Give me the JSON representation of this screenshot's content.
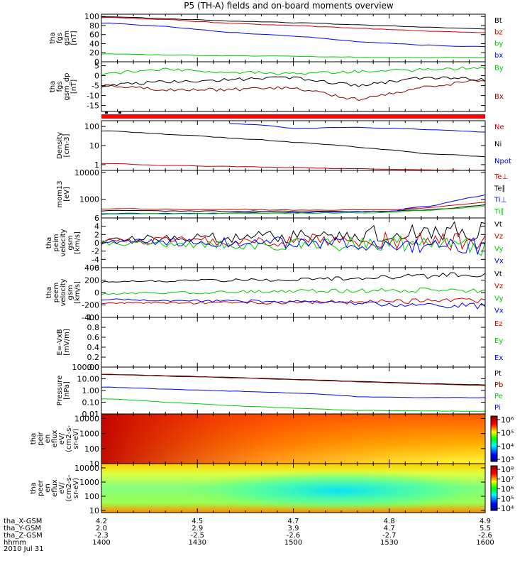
{
  "title": "P5 (TH-A) fields and on-board moments overview",
  "date_label": "2010 Jul 31",
  "ephemeris": {
    "rows": [
      {
        "label": "tha_X-GSM",
        "values": [
          "4.2",
          "4.5",
          "4.7",
          "4.8",
          "4.9"
        ]
      },
      {
        "label": "tha_Y-GSM",
        "values": [
          "2.0",
          "2.9",
          "3.9",
          "4.7",
          "5.5"
        ]
      },
      {
        "label": "tha_Z-GSM",
        "values": [
          "-2.3",
          "-2.5",
          "-2.6",
          "-2.7",
          "-2.6"
        ]
      },
      {
        "label": "hhmm",
        "values": [
          "1400",
          "1430",
          "1500",
          "1530",
          "1600"
        ]
      }
    ]
  },
  "chart_data": [
    {
      "type": "line",
      "ylabel": [
        "tha",
        "fgs",
        "gsm",
        "[nT]"
      ],
      "yscale": "linear",
      "ylim": [
        0,
        105
      ],
      "yticks": [
        "0",
        "20",
        "40",
        "60",
        "80",
        "100"
      ],
      "xlim": [
        "14:00",
        "16:00"
      ],
      "series": [
        {
          "name": "Bt",
          "color": "#000000",
          "x": [
            0,
            20,
            40,
            60,
            80,
            100,
            120
          ],
          "y": [
            100,
            95,
            90,
            86,
            82,
            77,
            72
          ]
        },
        {
          "name": "bz",
          "color": "#cc0000",
          "x": [
            0,
            20,
            40,
            60,
            80,
            100,
            120
          ],
          "y": [
            98,
            93,
            85,
            80,
            74,
            68,
            64
          ]
        },
        {
          "name": "by",
          "color": "#00cc00",
          "x": [
            0,
            20,
            40,
            60,
            80,
            100,
            120
          ],
          "y": [
            18,
            15,
            13,
            12,
            10,
            9,
            9
          ]
        },
        {
          "name": "bx",
          "color": "#0000ff",
          "x": [
            0,
            20,
            40,
            60,
            80,
            100,
            120
          ],
          "y": [
            86,
            78,
            65,
            57,
            45,
            37,
            33
          ]
        }
      ]
    },
    {
      "type": "line",
      "ylabel": [
        "tha",
        "fgs",
        "gsm_dp",
        "[nT]"
      ],
      "yscale": "linear",
      "ylim": [
        -18,
        7
      ],
      "yticks": [
        "-15",
        "-10",
        "-5",
        "0",
        "5"
      ],
      "series": [
        {
          "name": "By",
          "color": "#00cc00",
          "x": [
            0,
            20,
            40,
            60,
            80,
            100,
            120
          ],
          "y": [
            1,
            3,
            2,
            1,
            2,
            3,
            4
          ]
        },
        {
          "name": "Bx",
          "color": "#8b0000",
          "x": [
            0,
            20,
            40,
            60,
            80,
            100,
            120
          ],
          "y": [
            -5,
            -7,
            -7,
            -6,
            -12,
            -6,
            -2
          ]
        },
        {
          "name": "",
          "color": "#000000",
          "x": [
            0,
            20,
            40,
            60,
            80,
            100,
            120
          ],
          "y": [
            -5,
            -3,
            -2,
            -1,
            -5,
            -1,
            -2
          ]
        }
      ]
    },
    {
      "type": "line",
      "ylabel": [
        "Density",
        "[cm-3]"
      ],
      "yscale": "log",
      "ylim": [
        0.5,
        200
      ],
      "yticks": [
        "1",
        "10",
        "100"
      ],
      "series": [
        {
          "name": "Ne",
          "color": "#cc0000",
          "x": [
            0,
            20,
            40,
            60,
            80,
            100,
            120
          ],
          "y": [
            1.2,
            0.9,
            0.8,
            0.7,
            0.6,
            0.55,
            0.5
          ]
        },
        {
          "name": "Ni",
          "color": "#000000",
          "x": [
            0,
            20,
            40,
            60,
            80,
            100,
            120
          ],
          "y": [
            60,
            40,
            25,
            15,
            8,
            4,
            2.5
          ]
        },
        {
          "name": "Npot",
          "color": "#0000ff",
          "x": [
            40,
            60,
            80,
            100,
            120
          ],
          "y": [
            150,
            80,
            90,
            70,
            50
          ]
        }
      ]
    },
    {
      "type": "line",
      "ylabel": [
        "mom13",
        "[eV]"
      ],
      "yscale": "log",
      "ylim": [
        200,
        12000
      ],
      "yticks": [
        "1000",
        "10000"
      ],
      "series": [
        {
          "name": "Te⊥",
          "color": "#cc0000",
          "x": [
            0,
            30,
            60,
            90,
            105,
            120
          ],
          "y": [
            450,
            420,
            400,
            400,
            500,
            750
          ]
        },
        {
          "name": "Te∥",
          "color": "#000000",
          "x": [
            0,
            30,
            60,
            90,
            105,
            120
          ],
          "y": [
            380,
            360,
            350,
            350,
            420,
            600
          ]
        },
        {
          "name": "Ti⊥",
          "color": "#0000ff",
          "x": [
            0,
            30,
            60,
            90,
            105,
            120
          ],
          "y": [
            300,
            300,
            320,
            350,
            600,
            1400
          ]
        },
        {
          "name": "Ti∥",
          "color": "#00cc00",
          "x": [
            0,
            30,
            60,
            90,
            105,
            120
          ],
          "y": [
            280,
            290,
            300,
            320,
            400,
            550
          ]
        }
      ]
    },
    {
      "type": "line",
      "ylabel": [
        "tha",
        "peim",
        "velocity",
        "gsm",
        "[km/s]"
      ],
      "yscale": "linear",
      "ylim": [
        -6,
        6
      ],
      "yticks": [
        "-6",
        "-4",
        "-2",
        "0",
        "2",
        "4",
        "6"
      ],
      "series": [
        {
          "name": "Vt",
          "color": "#000000",
          "x": [
            0,
            60,
            120
          ],
          "y": [
            1,
            1.5,
            3
          ]
        },
        {
          "name": "Vz",
          "color": "#cc0000",
          "x": [
            0,
            60,
            120
          ],
          "y": [
            0.5,
            0.5,
            0.5
          ]
        },
        {
          "name": "Vy",
          "color": "#00cc00",
          "x": [
            0,
            60,
            120
          ],
          "y": [
            0,
            -0.3,
            -0.5
          ]
        },
        {
          "name": "Vx",
          "color": "#0000ff",
          "x": [
            0,
            60,
            120
          ],
          "y": [
            0.3,
            0,
            -0.5
          ]
        }
      ]
    },
    {
      "type": "line",
      "ylabel": [
        "tha",
        "peem",
        "velocity",
        "gsm",
        "[km/s]"
      ],
      "yscale": "linear",
      "ylim": [
        -400,
        400
      ],
      "yticks": [
        "-400",
        "-200",
        "0",
        "200",
        "400"
      ],
      "series": [
        {
          "name": "Vt",
          "color": "#000000",
          "x": [
            0,
            60,
            120
          ],
          "y": [
            170,
            210,
            290
          ]
        },
        {
          "name": "Vz",
          "color": "#cc0000",
          "x": [
            0,
            60,
            120
          ],
          "y": [
            -170,
            -160,
            -130
          ]
        },
        {
          "name": "Vy",
          "color": "#00cc00",
          "x": [
            0,
            60,
            120
          ],
          "y": [
            -20,
            20,
            40
          ]
        },
        {
          "name": "Vx",
          "color": "#0000ff",
          "x": [
            0,
            60,
            120
          ],
          "y": [
            -110,
            -150,
            -220
          ]
        }
      ]
    },
    {
      "type": "line",
      "ylabel": [
        "E=-VxB",
        "[mV/m]"
      ],
      "yscale": "linear",
      "ylim": [
        0,
        1
      ],
      "yticks": [
        "0.0",
        "0.2",
        "0.4",
        "0.6",
        "0.8",
        "1.0"
      ],
      "series": [
        {
          "name": "Ez",
          "color": "#cc0000",
          "x": [],
          "y": []
        },
        {
          "name": "Ey",
          "color": "#00cc00",
          "x": [],
          "y": []
        },
        {
          "name": "Ex",
          "color": "#0000ff",
          "x": [],
          "y": []
        }
      ]
    },
    {
      "type": "line",
      "ylabel": [
        "Pressure",
        "[nPa]"
      ],
      "yscale": "log",
      "ylim": [
        0.01,
        100
      ],
      "yticks": [
        "0.01",
        "0.10",
        "1.00",
        "10.00",
        "100.00"
      ],
      "series": [
        {
          "name": "Pt",
          "color": "#000000",
          "x": [
            0,
            20,
            40,
            60,
            80,
            100,
            120
          ],
          "y": [
            25,
            18,
            13,
            9,
            6,
            4,
            3
          ]
        },
        {
          "name": "Pb",
          "color": "#8b0000",
          "x": [
            0,
            20,
            40,
            60,
            80,
            100,
            120
          ],
          "y": [
            24,
            17,
            12,
            8.5,
            5.5,
            3.6,
            2.7
          ]
        },
        {
          "name": "Pe",
          "color": "#00cc00",
          "x": [
            0,
            20,
            40,
            60,
            80,
            100,
            120
          ],
          "y": [
            0.2,
            0.1,
            0.05,
            0.03,
            0.02,
            0.018,
            0.017
          ]
        },
        {
          "name": "Pi",
          "color": "#0000ff",
          "x": [
            0,
            20,
            40,
            60,
            80,
            100,
            120
          ],
          "y": [
            2,
            1.3,
            0.9,
            0.6,
            0.3,
            0.25,
            0.25
          ]
        }
      ]
    },
    {
      "type": "heatmap",
      "ylabel": [
        "tha",
        "peir",
        "en",
        "eflux",
        "eV/",
        "(cm2-s-",
        "sr-eV)"
      ],
      "yscale": "log",
      "ylim": [
        10,
        20000
      ],
      "yticks": [
        "10",
        "100",
        "1000",
        "10000"
      ],
      "colorbar_ticks": [
        "10³",
        "10⁴",
        "10⁵",
        "10⁶"
      ]
    },
    {
      "type": "heatmap",
      "ylabel": [
        "tha",
        "peer",
        "en",
        "eflux",
        "eV/",
        "(cm2-s-",
        "sr-eV)"
      ],
      "yscale": "log",
      "ylim": [
        7,
        20000
      ],
      "yticks": [
        "10",
        "100",
        "1000",
        "10000"
      ],
      "colorbar_ticks": [
        "10⁴",
        "10⁵",
        "10⁶",
        "10⁷",
        "10⁸"
      ]
    }
  ]
}
